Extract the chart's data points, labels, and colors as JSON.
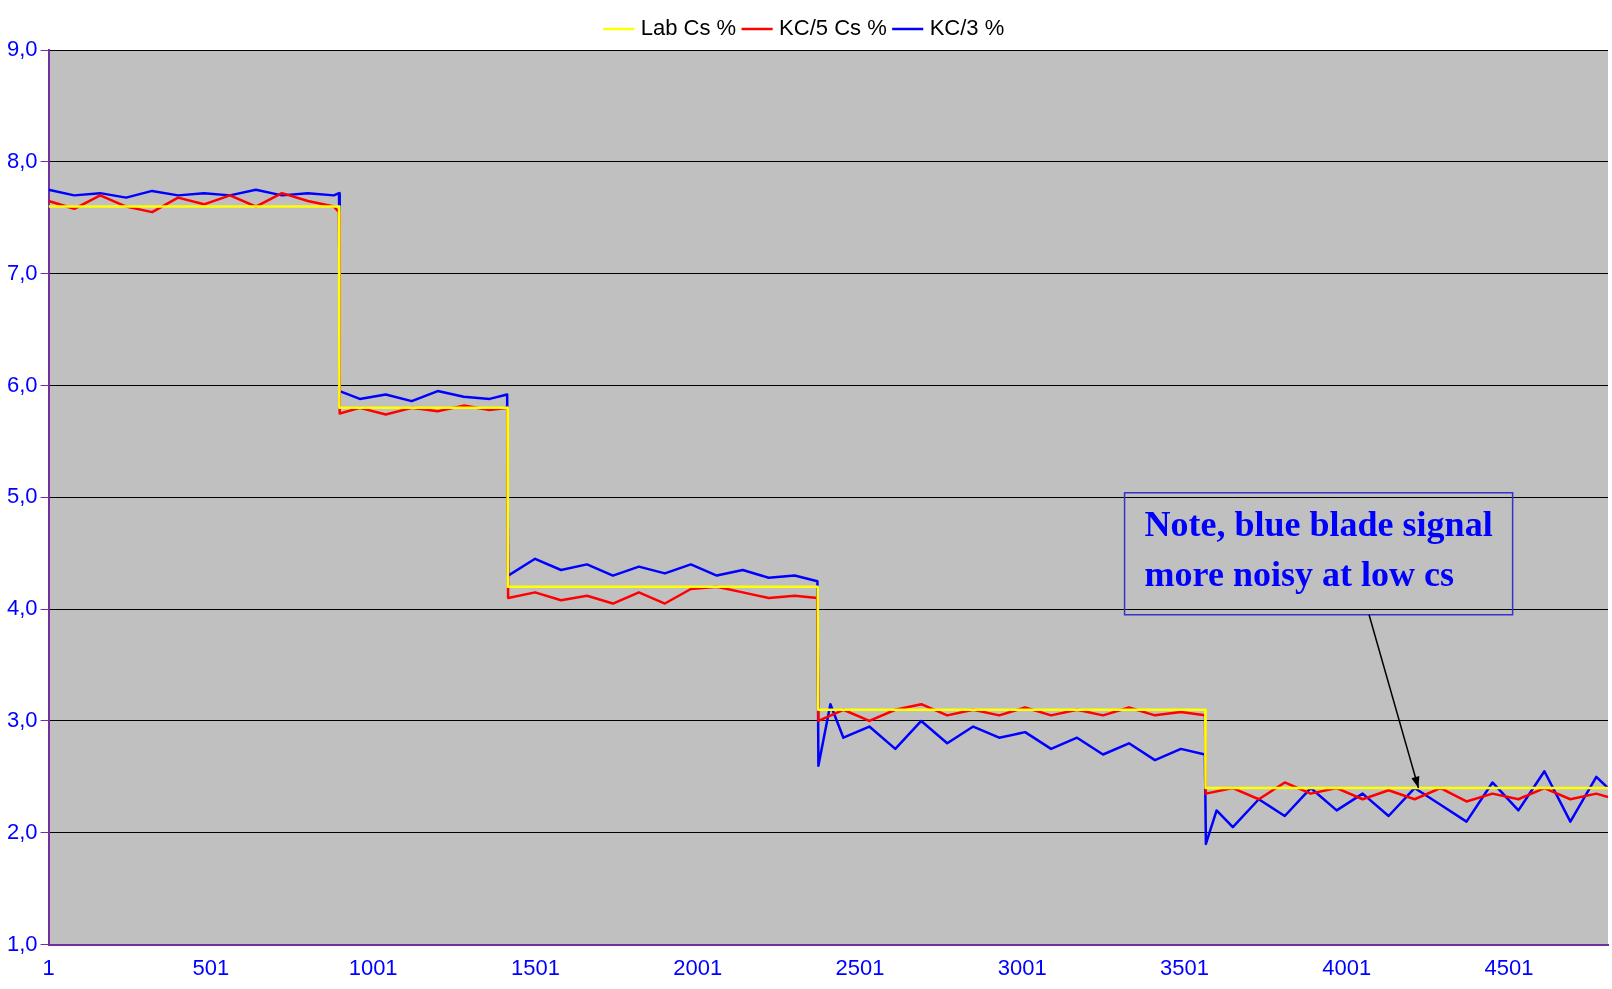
{
  "chart_data": {
    "type": "line",
    "xlim": [
      1,
      4806
    ],
    "xticks": [
      1,
      501,
      1001,
      1501,
      2001,
      2501,
      3001,
      3501,
      4001,
      4501
    ],
    "ylim": [
      1,
      9
    ],
    "yticks": [
      {
        "value": 1,
        "label": "1,0"
      },
      {
        "value": 2,
        "label": "2,0"
      },
      {
        "value": 3,
        "label": "3,0"
      },
      {
        "value": 4,
        "label": "4,0"
      },
      {
        "value": 5,
        "label": "5,0"
      },
      {
        "value": 6,
        "label": "6,0"
      },
      {
        "value": 7,
        "label": "7,0"
      },
      {
        "value": 8,
        "label": "8,0"
      },
      {
        "value": 9,
        "label": "9,0"
      }
    ],
    "grid": "y",
    "legend": "top",
    "marker": "none",
    "line_style": "solid",
    "annotations": [
      {
        "text": "Note, blue blade signal more noisy at low cs",
        "x": 4222,
        "y": 2.4
      }
    ],
    "series": [
      {
        "name": "Lab Cs %",
        "color": "#ffff00",
        "x": [
          1,
          896,
          897,
          1415,
          1416,
          2371,
          2372,
          3565,
          3566,
          4806
        ],
        "values": [
          7.6,
          7.6,
          5.8,
          5.8,
          4.2,
          4.2,
          3.1,
          3.1,
          2.4,
          2.4
        ]
      },
      {
        "name": "KC/5 Cs %",
        "color": "#ff0000",
        "x": [
          1,
          80,
          160,
          240,
          320,
          400,
          480,
          560,
          640,
          720,
          800,
          880,
          896,
          898,
          960,
          1040,
          1120,
          1200,
          1280,
          1360,
          1414,
          1417,
          1500,
          1580,
          1660,
          1740,
          1820,
          1900,
          1980,
          2060,
          2140,
          2220,
          2300,
          2370,
          2373,
          2450,
          2530,
          2610,
          2690,
          2770,
          2850,
          2930,
          3010,
          3090,
          3170,
          3250,
          3330,
          3410,
          3490,
          3564,
          3567,
          3650,
          3730,
          3810,
          3890,
          3970,
          4050,
          4130,
          4210,
          4290,
          4370,
          4450,
          4530,
          4610,
          4690,
          4770,
          4806
        ],
        "values": [
          7.65,
          7.58,
          7.7,
          7.6,
          7.55,
          7.68,
          7.62,
          7.7,
          7.6,
          7.72,
          7.65,
          7.6,
          7.55,
          5.75,
          5.8,
          5.74,
          5.8,
          5.77,
          5.82,
          5.78,
          5.8,
          4.1,
          4.15,
          4.08,
          4.12,
          4.05,
          4.15,
          4.05,
          4.18,
          4.2,
          4.15,
          4.1,
          4.12,
          4.1,
          3.0,
          3.1,
          3.0,
          3.1,
          3.15,
          3.05,
          3.1,
          3.05,
          3.12,
          3.05,
          3.1,
          3.05,
          3.12,
          3.05,
          3.08,
          3.05,
          2.35,
          2.4,
          2.3,
          2.45,
          2.35,
          2.4,
          2.3,
          2.38,
          2.3,
          2.4,
          2.28,
          2.35,
          2.3,
          2.4,
          2.3,
          2.35,
          2.32
        ]
      },
      {
        "name": "KC/3 %",
        "color": "#0000ff",
        "x": [
          1,
          80,
          160,
          240,
          320,
          400,
          480,
          560,
          640,
          720,
          800,
          880,
          896,
          898,
          960,
          1040,
          1120,
          1200,
          1280,
          1360,
          1414,
          1417,
          1500,
          1580,
          1660,
          1740,
          1820,
          1900,
          1980,
          2060,
          2140,
          2220,
          2300,
          2370,
          2373,
          2410,
          2450,
          2530,
          2610,
          2690,
          2770,
          2850,
          2930,
          3010,
          3090,
          3170,
          3250,
          3330,
          3410,
          3490,
          3564,
          3567,
          3600,
          3650,
          3730,
          3810,
          3890,
          3970,
          4050,
          4130,
          4210,
          4290,
          4370,
          4450,
          4530,
          4610,
          4690,
          4770,
          4806
        ],
        "values": [
          7.75,
          7.7,
          7.72,
          7.68,
          7.74,
          7.7,
          7.72,
          7.7,
          7.75,
          7.7,
          7.72,
          7.7,
          7.72,
          5.95,
          5.88,
          5.92,
          5.86,
          5.95,
          5.9,
          5.88,
          5.92,
          4.3,
          4.45,
          4.35,
          4.4,
          4.3,
          4.38,
          4.32,
          4.4,
          4.3,
          4.35,
          4.28,
          4.3,
          4.25,
          2.6,
          3.15,
          2.85,
          2.95,
          2.75,
          3.0,
          2.8,
          2.95,
          2.85,
          2.9,
          2.75,
          2.85,
          2.7,
          2.8,
          2.65,
          2.75,
          2.7,
          1.9,
          2.2,
          2.05,
          2.3,
          2.15,
          2.4,
          2.2,
          2.35,
          2.15,
          2.4,
          2.25,
          2.1,
          2.45,
          2.2,
          2.55,
          2.1,
          2.5,
          2.4
        ]
      }
    ]
  }
}
